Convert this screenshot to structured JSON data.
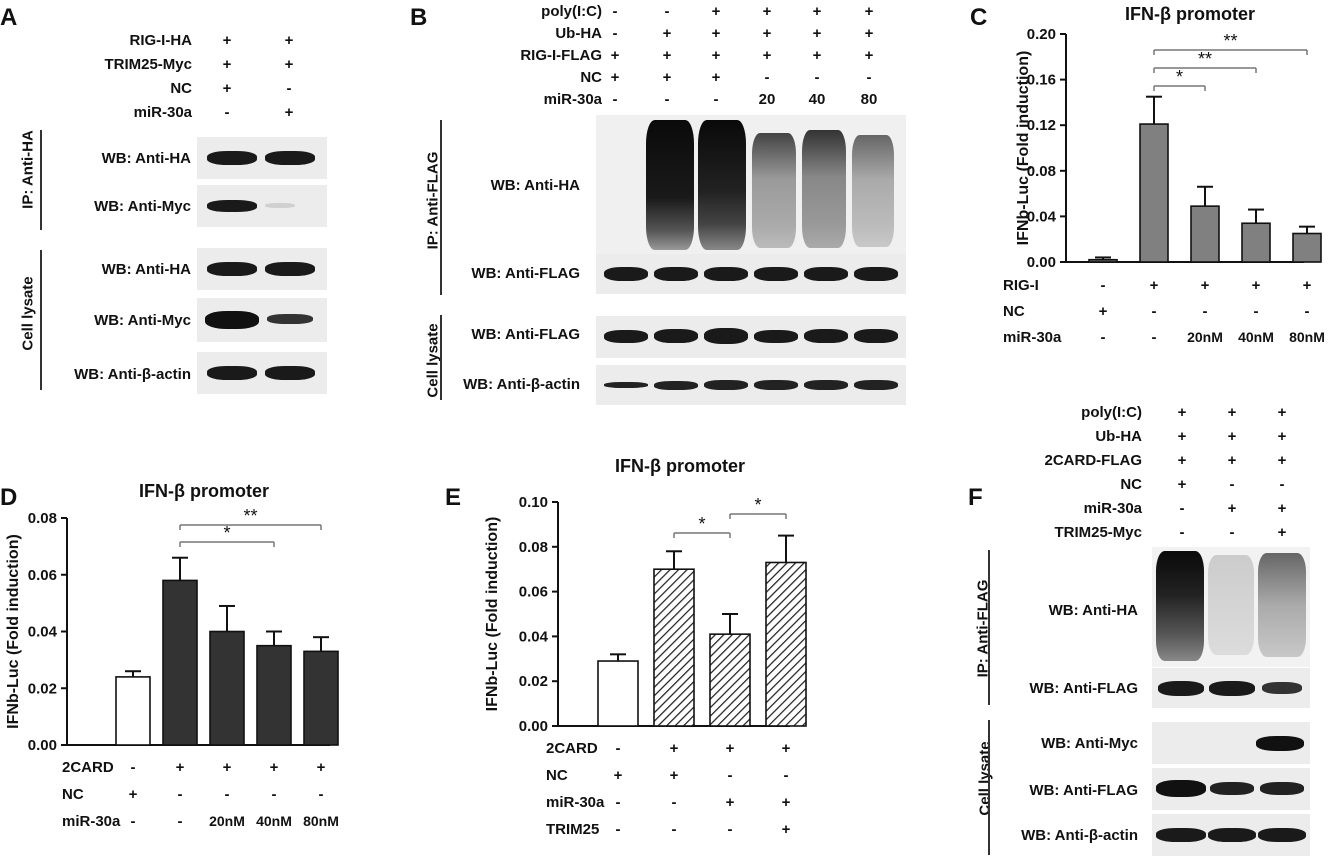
{
  "panel_labels": {
    "A": "A",
    "B": "B",
    "C": "C",
    "D": "D",
    "E": "E",
    "F": "F"
  },
  "panelA": {
    "rows": [
      {
        "label": "RIG-I-HA",
        "v": [
          "+",
          "+"
        ]
      },
      {
        "label": "TRIM25-Myc",
        "v": [
          "+",
          "+"
        ]
      },
      {
        "label": "NC",
        "v": [
          "+",
          "-"
        ]
      },
      {
        "label": "miR-30a",
        "v": [
          "-",
          "+"
        ]
      }
    ],
    "ip_label": "IP: Anti-HA",
    "lysate_label": "Cell lysate",
    "blots": [
      "WB: Anti-HA",
      "WB: Anti-Myc",
      "WB: Anti-HA",
      "WB: Anti-Myc",
      "WB: Anti-β-actin"
    ]
  },
  "panelB": {
    "rows": [
      {
        "label": "poly(I:C)",
        "v": [
          "-",
          "-",
          "+",
          "+",
          "+",
          "+"
        ]
      },
      {
        "label": "Ub-HA",
        "v": [
          "-",
          "+",
          "+",
          "+",
          "+",
          "+"
        ]
      },
      {
        "label": "RIG-I-FLAG",
        "v": [
          "+",
          "+",
          "+",
          "+",
          "+",
          "+"
        ]
      },
      {
        "label": "NC",
        "v": [
          "+",
          "+",
          "+",
          "-",
          "-",
          "-"
        ]
      },
      {
        "label": "miR-30a",
        "v": [
          "-",
          "-",
          "-",
          "20",
          "40",
          "80"
        ]
      }
    ],
    "ip_label": "IP: Anti-FLAG",
    "lysate_label": "Cell lysate",
    "blots": [
      "WB: Anti-HA",
      "WB: Anti-FLAG",
      "WB: Anti-FLAG",
      "WB: Anti-β-actin"
    ]
  },
  "panelF": {
    "rows": [
      {
        "label": "poly(I:C)",
        "v": [
          "+",
          "+",
          "+"
        ]
      },
      {
        "label": "Ub-HA",
        "v": [
          "+",
          "+",
          "+"
        ]
      },
      {
        "label": "2CARD-FLAG",
        "v": [
          "+",
          "+",
          "+"
        ]
      },
      {
        "label": "NC",
        "v": [
          "+",
          "-",
          "-"
        ]
      },
      {
        "label": "miR-30a",
        "v": [
          "-",
          "+",
          "+"
        ]
      },
      {
        "label": "TRIM25-Myc",
        "v": [
          "-",
          "-",
          "+"
        ]
      }
    ],
    "ip_label": "IP: Anti-FLAG",
    "lysate_label": "Cell lysate",
    "blots": [
      "WB: Anti-HA",
      "WB: Anti-FLAG",
      "WB: Anti-Myc",
      "WB: Anti-FLAG",
      "WB: Anti-β-actin"
    ]
  },
  "chart_data": [
    {
      "panel": "C",
      "type": "bar",
      "title": "IFN-β promoter",
      "ylabel": "IFNb-Luc (Fold induction)",
      "ylim": [
        0,
        0.2
      ],
      "yticks": [
        "0.00",
        "0.04",
        "0.08",
        "0.12",
        "0.16",
        "0.20"
      ],
      "values": [
        0.002,
        0.121,
        0.049,
        0.034,
        0.025
      ],
      "errors": [
        0.002,
        0.024,
        0.017,
        0.012,
        0.006
      ],
      "fill": "#808080",
      "conditions": [
        {
          "label": "RIG-I",
          "v": [
            "-",
            "+",
            "+",
            "+",
            "+"
          ]
        },
        {
          "label": "NC",
          "v": [
            "+",
            "-",
            "-",
            "-",
            "-"
          ]
        },
        {
          "label": "miR-30a",
          "v": [
            "-",
            "-",
            "20nM",
            "40nM",
            "80nM"
          ]
        }
      ],
      "significance": [
        {
          "from": 1,
          "to": 2,
          "mark": "*"
        },
        {
          "from": 1,
          "to": 3,
          "mark": "**"
        },
        {
          "from": 1,
          "to": 4,
          "mark": "**"
        }
      ]
    },
    {
      "panel": "D",
      "type": "bar",
      "title": "IFN-β promoter",
      "ylabel": "IFNb-Luc (Fold induction)",
      "ylim": [
        0,
        0.08
      ],
      "yticks": [
        "0.00",
        "0.02",
        "0.04",
        "0.06",
        "0.08"
      ],
      "values": [
        0.024,
        0.058,
        0.04,
        0.035,
        0.033
      ],
      "errors": [
        0.002,
        0.008,
        0.009,
        0.005,
        0.005
      ],
      "fill": [
        "#ffffff",
        "#333333",
        "#333333",
        "#333333",
        "#333333"
      ],
      "conditions": [
        {
          "label": "2CARD",
          "v": [
            "-",
            "+",
            "+",
            "+",
            "+"
          ]
        },
        {
          "label": "NC",
          "v": [
            "+",
            "-",
            "-",
            "-",
            "-"
          ]
        },
        {
          "label": "miR-30a",
          "v": [
            "-",
            "-",
            "20nM",
            "40nM",
            "80nM"
          ]
        }
      ],
      "significance": [
        {
          "from": 1,
          "to": 3,
          "mark": "*"
        },
        {
          "from": 1,
          "to": 4,
          "mark": "**"
        }
      ]
    },
    {
      "panel": "E",
      "type": "bar",
      "title": "IFN-β promoter",
      "ylabel": "IFNb-Luc (Fold induction)",
      "ylim": [
        0,
        0.1
      ],
      "yticks": [
        "0.00",
        "0.02",
        "0.04",
        "0.06",
        "0.08",
        "0.10"
      ],
      "values": [
        0.029,
        0.07,
        0.041,
        0.073
      ],
      "errors": [
        0.003,
        0.008,
        0.009,
        0.012
      ],
      "fill": [
        "white",
        "hatch",
        "hatch",
        "hatch"
      ],
      "conditions": [
        {
          "label": "2CARD",
          "v": [
            "-",
            "+",
            "+",
            "+"
          ]
        },
        {
          "label": "NC",
          "v": [
            "+",
            "+",
            "-",
            "-"
          ]
        },
        {
          "label": "miR-30a",
          "v": [
            "-",
            "-",
            "+",
            "+"
          ]
        },
        {
          "label": "TRIM25",
          "v": [
            "-",
            "-",
            "-",
            "+"
          ]
        }
      ],
      "significance": [
        {
          "from": 1,
          "to": 2,
          "mark": "*"
        },
        {
          "from": 2,
          "to": 3,
          "mark": "*"
        }
      ]
    }
  ]
}
